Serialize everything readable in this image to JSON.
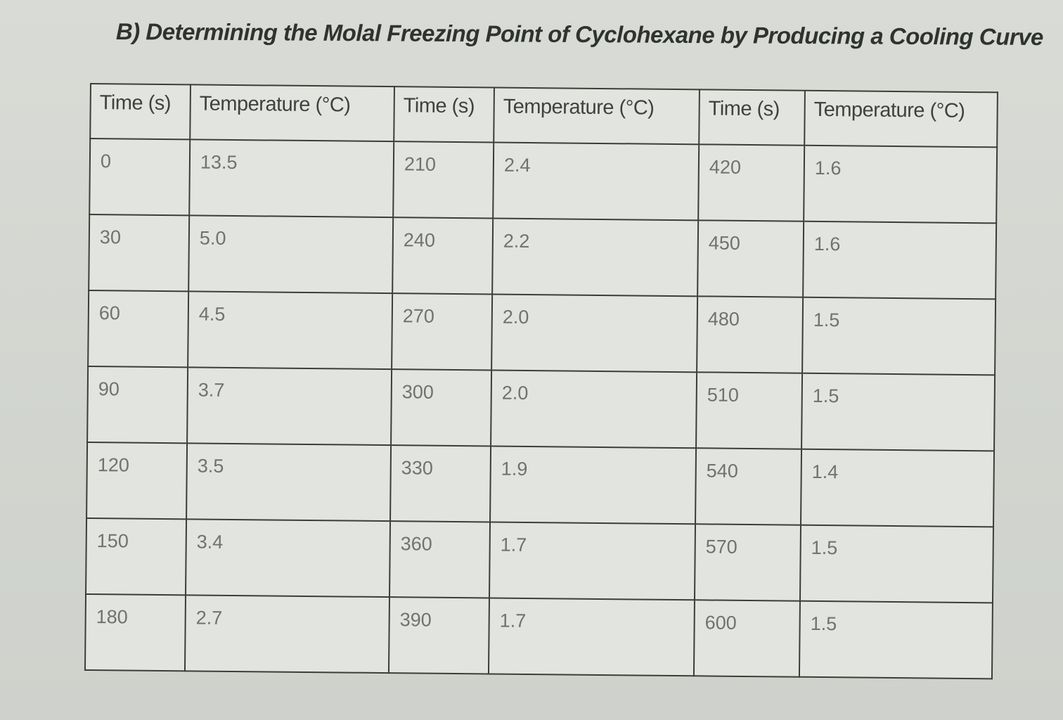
{
  "title": "B) Determining the Molal Freezing Point of Cyclohexane by Producing a Cooling Curve",
  "table": {
    "headers": [
      "Time (s)",
      "Temperature (°C)",
      "Time (s)",
      "Temperature (°C)",
      "Time (s)",
      "Temperature (°C)"
    ],
    "rows": [
      [
        "0",
        "13.5",
        "210",
        "2.4",
        "420",
        "1.6"
      ],
      [
        "30",
        "5.0",
        "240",
        "2.2",
        "450",
        "1.6"
      ],
      [
        "60",
        "4.5",
        "270",
        "2.0",
        "480",
        "1.5"
      ],
      [
        "90",
        "3.7",
        "300",
        "2.0",
        "510",
        "1.5"
      ],
      [
        "120",
        "3.5",
        "330",
        "1.9",
        "540",
        "1.4"
      ],
      [
        "150",
        "3.4",
        "360",
        "1.7",
        "570",
        "1.5"
      ],
      [
        "180",
        "2.7",
        "390",
        "1.7",
        "600",
        "1.5"
      ]
    ]
  }
}
